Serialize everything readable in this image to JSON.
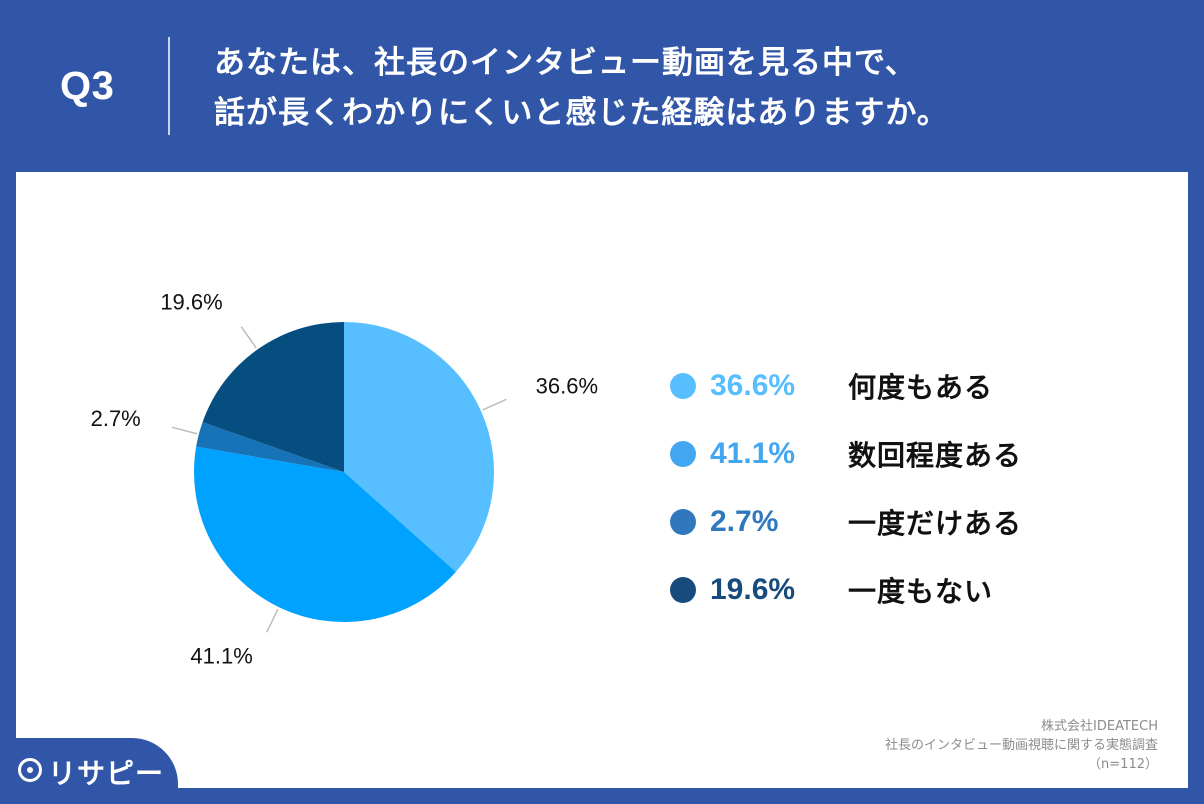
{
  "header": {
    "question_number": "Q3",
    "question_line1": "あなたは、社長のインタビュー動画を見る中で、",
    "question_line2": "話が長くわかりにくいと感じた経験はありますか。"
  },
  "chart_data": {
    "type": "pie",
    "categories": [
      "何度もある",
      "数回程度ある",
      "一度だけある",
      "一度もない"
    ],
    "values": [
      36.6,
      41.1,
      2.7,
      19.6
    ],
    "value_labels": [
      "36.6%",
      "41.1%",
      "2.7%",
      "19.6%"
    ],
    "colors": [
      "#57bfff",
      "#00a2ff",
      "#1673b8",
      "#064d80"
    ],
    "legend_colors": [
      "#57bfff",
      "#43a6f0",
      "#2f78bd",
      "#184b7d"
    ],
    "legend_position": "right"
  },
  "legend": {
    "items": [
      {
        "value": "36.6%",
        "label": "何度もある",
        "color": "#57bfff"
      },
      {
        "value": "41.1%",
        "label": "数回程度ある",
        "color": "#43a6f0"
      },
      {
        "value": "2.7%",
        "label": "一度だけある",
        "color": "#2f78bd"
      },
      {
        "value": "19.6%",
        "label": "一度もない",
        "color": "#184b7d"
      }
    ]
  },
  "footer": {
    "company": "株式会社IDEATECH",
    "survey": "社長のインタビュー動画視聴に関する実態調査",
    "sample": "（n=112）"
  },
  "brand": {
    "name": "リサピー",
    "icon": "map-pin-icon"
  }
}
